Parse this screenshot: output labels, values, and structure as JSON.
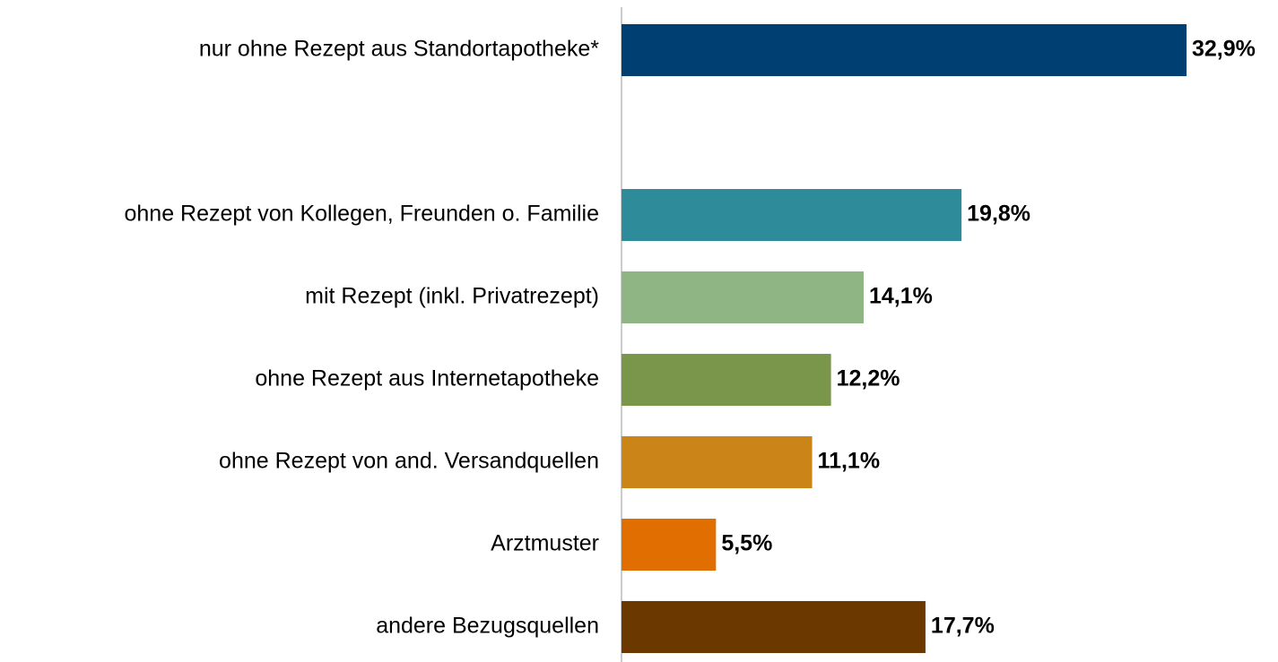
{
  "chart_data": {
    "type": "bar",
    "orientation": "horizontal",
    "categories": [
      "nur ohne Rezept aus Standortapotheke*",
      null,
      "ohne Rezept von Kollegen, Freunden o. Familie",
      "mit  Rezept (inkl. Privatrezept)",
      "ohne Rezept aus Internetapotheke",
      "ohne Rezept von and. Versandquellen",
      "Arztmuster",
      "andere Bezugsquellen"
    ],
    "values": [
      32.9,
      null,
      19.8,
      14.1,
      12.2,
      11.1,
      5.5,
      17.7
    ],
    "value_labels": [
      "32,9%",
      null,
      "19,8%",
      "14,1%",
      "12,2%",
      "11,1%",
      "5,5%",
      "17,7%"
    ],
    "colors": [
      "#003f72",
      null,
      "#2e8b9a",
      "#90b584",
      "#7a964b",
      "#cb8418",
      "#e06e00",
      "#6b3800"
    ],
    "grid": false
  }
}
